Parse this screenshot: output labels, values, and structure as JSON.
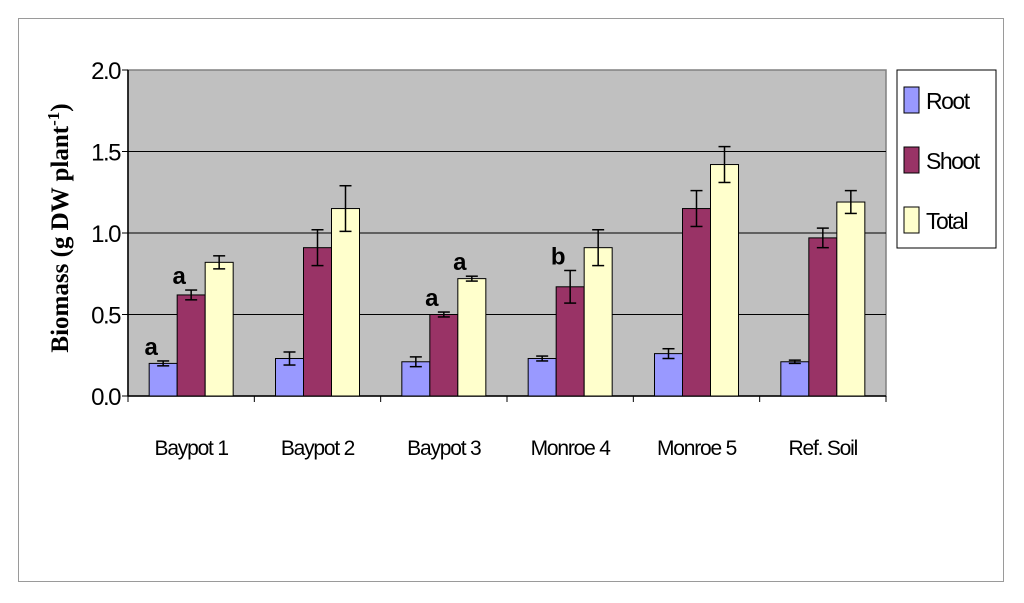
{
  "chart_data": {
    "type": "bar",
    "ylabel": "Biomass (g DW plant",
    "ylabel_sup": "-1",
    "ylabel_close": ")",
    "ylim": [
      0,
      2.0
    ],
    "yticks": [
      "0.0",
      "0.5",
      "1.0",
      "1.5",
      "2.0"
    ],
    "categories": [
      "Baypot 1",
      "Baypot 2",
      "Baypot 3",
      "Monroe 4",
      "Monroe 5",
      "Ref. Soil"
    ],
    "series": [
      {
        "name": "Root",
        "color": "#9999ff",
        "values": [
          0.2,
          0.23,
          0.21,
          0.23,
          0.26,
          0.21
        ],
        "errors": [
          0.015,
          0.04,
          0.03,
          0.015,
          0.03,
          0.01
        ]
      },
      {
        "name": "Shoot",
        "color": "#993366",
        "values": [
          0.62,
          0.91,
          0.5,
          0.67,
          1.15,
          0.97
        ],
        "errors": [
          0.03,
          0.11,
          0.015,
          0.1,
          0.11,
          0.06
        ]
      },
      {
        "name": "Total",
        "color": "#ffffcc",
        "values": [
          0.82,
          1.15,
          0.72,
          0.91,
          1.42,
          1.19
        ],
        "errors": [
          0.04,
          0.14,
          0.015,
          0.11,
          0.11,
          0.07
        ]
      }
    ],
    "annotations": [
      {
        "text": "a",
        "category": "Baypot 1",
        "series": "Root"
      },
      {
        "text": "a",
        "category": "Baypot 1",
        "series": "Shoot"
      },
      {
        "text": "a",
        "category": "Baypot 3",
        "series": "Shoot"
      },
      {
        "text": "a",
        "category": "Baypot 3",
        "series": "Total"
      },
      {
        "text": "b",
        "category": "Monroe 4",
        "series": "Shoot"
      }
    ],
    "grid": true,
    "legend_position": "right",
    "plot_background": "#c0c0c0"
  }
}
